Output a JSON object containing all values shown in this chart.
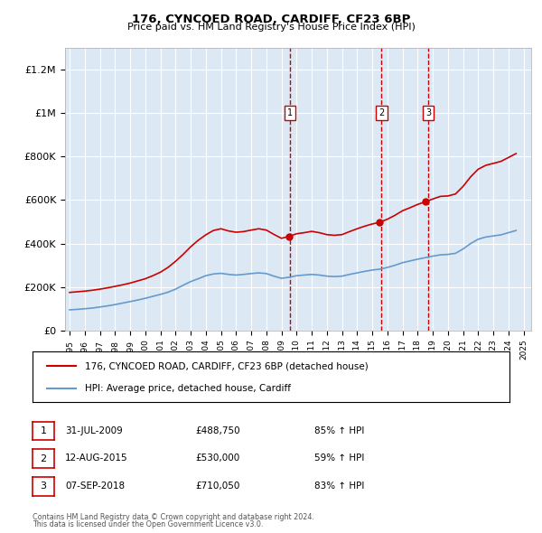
{
  "title1": "176, CYNCOED ROAD, CARDIFF, CF23 6BP",
  "title2": "Price paid vs. HM Land Registry's House Price Index (HPI)",
  "ylabel_ticks": [
    "£0",
    "£200K",
    "£400K",
    "£600K",
    "£800K",
    "£1M",
    "£1.2M"
  ],
  "ytick_vals": [
    0,
    200000,
    400000,
    600000,
    800000,
    1000000,
    1200000
  ],
  "ylim": [
    0,
    1300000
  ],
  "xlim_start": 1995.0,
  "xlim_end": 2025.5,
  "background_color": "#dce9f5",
  "plot_bg": "#dce9f5",
  "legend_line1": "176, CYNCOED ROAD, CARDIFF, CF23 6BP (detached house)",
  "legend_line2": "HPI: Average price, detached house, Cardiff",
  "transactions": [
    {
      "num": 1,
      "date": "31-JUL-2009",
      "price": 488750,
      "year": 2009.58,
      "pct": "85%",
      "dir": "↑"
    },
    {
      "num": 2,
      "date": "12-AUG-2015",
      "price": 530000,
      "year": 2015.62,
      "pct": "59%",
      "dir": "↑"
    },
    {
      "num": 3,
      "date": "07-SEP-2018",
      "price": 710050,
      "year": 2018.69,
      "pct": "83%",
      "dir": "↑"
    }
  ],
  "footer1": "Contains HM Land Registry data © Crown copyright and database right 2024.",
  "footer2": "This data is licensed under the Open Government Licence v3.0.",
  "hpi_color": "#6699cc",
  "price_color": "#cc0000",
  "vline_color": "#cc0000",
  "hpi_years": [
    1995.0,
    1995.5,
    1996.0,
    1996.5,
    1997.0,
    1997.5,
    1998.0,
    1998.5,
    1999.0,
    1999.5,
    2000.0,
    2000.5,
    2001.0,
    2001.5,
    2002.0,
    2002.5,
    2003.0,
    2003.5,
    2004.0,
    2004.5,
    2005.0,
    2005.5,
    2006.0,
    2006.5,
    2007.0,
    2007.5,
    2008.0,
    2008.5,
    2009.0,
    2009.5,
    2010.0,
    2010.5,
    2011.0,
    2011.5,
    2012.0,
    2012.5,
    2013.0,
    2013.5,
    2014.0,
    2014.5,
    2015.0,
    2015.5,
    2016.0,
    2016.5,
    2017.0,
    2017.5,
    2018.0,
    2018.5,
    2019.0,
    2019.5,
    2020.0,
    2020.5,
    2021.0,
    2021.5,
    2022.0,
    2022.5,
    2023.0,
    2023.5,
    2024.0,
    2024.5
  ],
  "hpi_vals": [
    95000,
    97000,
    100000,
    103000,
    108000,
    113000,
    119000,
    126000,
    133000,
    140000,
    148000,
    157000,
    166000,
    176000,
    190000,
    208000,
    225000,
    238000,
    252000,
    260000,
    263000,
    258000,
    255000,
    258000,
    262000,
    265000,
    262000,
    250000,
    240000,
    245000,
    252000,
    255000,
    258000,
    255000,
    250000,
    248000,
    250000,
    258000,
    265000,
    272000,
    278000,
    282000,
    290000,
    300000,
    312000,
    320000,
    328000,
    335000,
    342000,
    348000,
    350000,
    355000,
    375000,
    400000,
    420000,
    430000,
    435000,
    440000,
    450000,
    460000
  ],
  "price_years": [
    1995.0,
    1995.5,
    1996.0,
    1996.5,
    1997.0,
    1997.5,
    1998.0,
    1998.5,
    1999.0,
    1999.5,
    2000.0,
    2000.5,
    2001.0,
    2001.5,
    2002.0,
    2002.5,
    2003.0,
    2003.5,
    2004.0,
    2004.5,
    2005.0,
    2005.5,
    2006.0,
    2006.5,
    2007.0,
    2007.5,
    2008.0,
    2008.5,
    2009.0,
    2009.5,
    2010.0,
    2010.5,
    2011.0,
    2011.5,
    2012.0,
    2012.5,
    2013.0,
    2013.5,
    2014.0,
    2014.5,
    2015.0,
    2015.5,
    2016.0,
    2016.5,
    2017.0,
    2017.5,
    2018.0,
    2018.5,
    2019.0,
    2019.5,
    2020.0,
    2020.5,
    2021.0,
    2021.5,
    2022.0,
    2022.5,
    2023.0,
    2023.5,
    2024.0,
    2024.5
  ],
  "price_vals": [
    175000,
    178000,
    181000,
    185000,
    190000,
    196000,
    203000,
    210000,
    218000,
    228000,
    238000,
    252000,
    268000,
    290000,
    318000,
    350000,
    385000,
    415000,
    440000,
    460000,
    468000,
    458000,
    452000,
    455000,
    462000,
    468000,
    462000,
    442000,
    424000,
    433000,
    445000,
    450000,
    456000,
    450000,
    441000,
    438000,
    441000,
    455000,
    468000,
    480000,
    490000,
    498000,
    512000,
    530000,
    551000,
    565000,
    580000,
    592000,
    605000,
    617000,
    619000,
    628000,
    663000,
    707000,
    742000,
    760000,
    769000,
    778000,
    796000,
    814000
  ]
}
